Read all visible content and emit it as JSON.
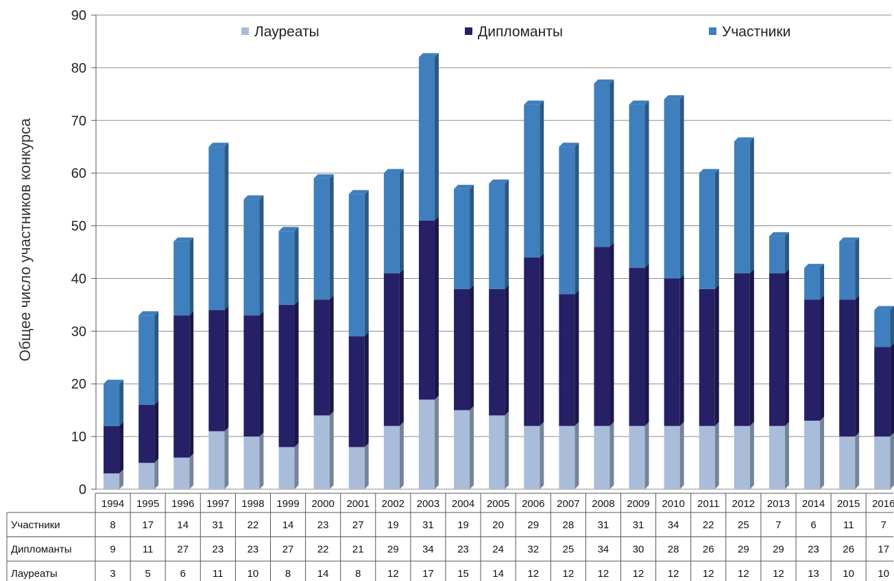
{
  "chart_data": {
    "type": "bar",
    "stacked": true,
    "ylabel": "Общее число участников конкурса",
    "xlabel": "",
    "ylim": [
      0,
      90
    ],
    "yticks": [
      0,
      10,
      20,
      30,
      40,
      50,
      60,
      70,
      80,
      90
    ],
    "grid": true,
    "legend_position": "top",
    "categories": [
      "1994",
      "1995",
      "1996",
      "1997",
      "1998",
      "1999",
      "2000",
      "2001",
      "2002",
      "2003",
      "2004",
      "2005",
      "2006",
      "2007",
      "2008",
      "2009",
      "2010",
      "2011",
      "2012",
      "2013",
      "2014",
      "2015",
      "2016"
    ],
    "series": [
      {
        "name": "Лауреаты",
        "color": "#a9bcd9",
        "values": [
          3,
          5,
          6,
          11,
          10,
          8,
          14,
          8,
          12,
          17,
          15,
          14,
          12,
          12,
          12,
          12,
          12,
          12,
          12,
          12,
          13,
          10,
          10
        ]
      },
      {
        "name": "Дипломанты",
        "color": "#262166",
        "values": [
          9,
          11,
          27,
          23,
          23,
          27,
          22,
          21,
          29,
          34,
          23,
          24,
          32,
          25,
          34,
          30,
          28,
          26,
          29,
          29,
          23,
          26,
          17
        ]
      },
      {
        "name": "Участники",
        "color": "#3f7fbd",
        "values": [
          8,
          17,
          14,
          31,
          22,
          14,
          23,
          27,
          19,
          31,
          19,
          20,
          29,
          28,
          31,
          31,
          34,
          22,
          25,
          7,
          6,
          11,
          7
        ]
      }
    ],
    "table_rows": [
      "Участники",
      "Дипломанты",
      "Лауреаты"
    ]
  }
}
